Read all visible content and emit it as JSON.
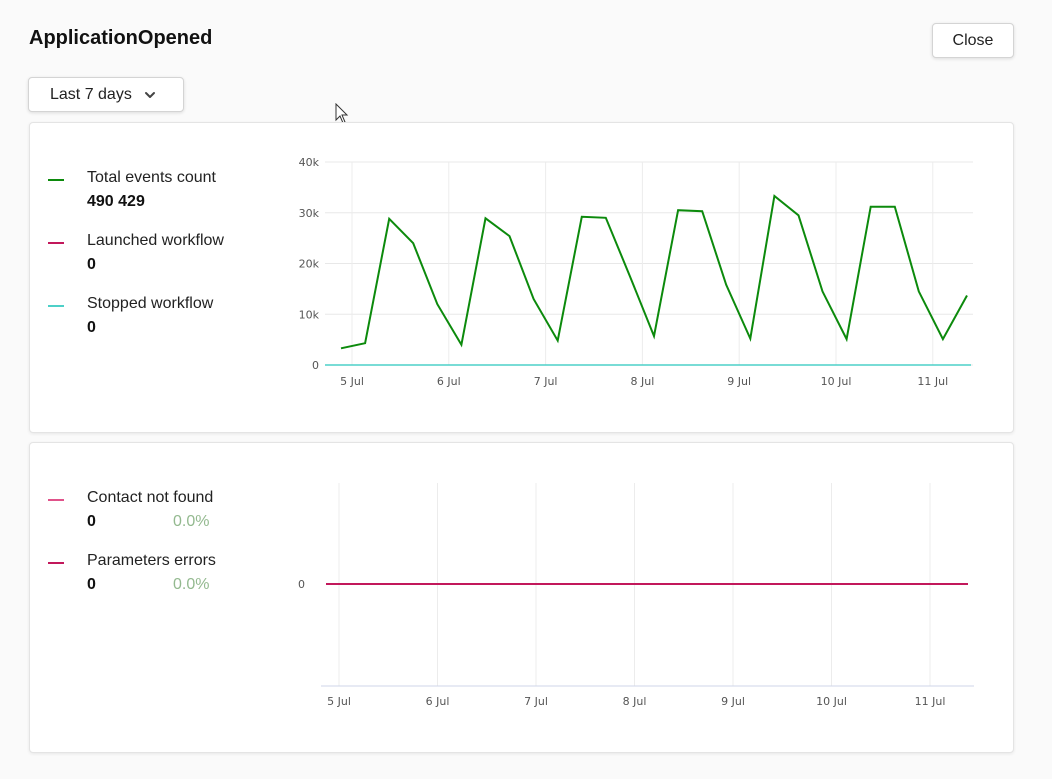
{
  "header": {
    "title": "ApplicationOpened",
    "close_label": "Close"
  },
  "filter": {
    "range_label": "Last 7 days",
    "chevron_icon": "chevron-down-icon"
  },
  "colors": {
    "total": "#0c8a0c",
    "launched": "#c2185b",
    "stopped": "#4dd0c8",
    "contact_not_found": "#e0528a",
    "parameters_errors": "#c2185b",
    "percent": "#93b98f"
  },
  "card1": {
    "legend": [
      {
        "label": "Total events count",
        "value": "490 429"
      },
      {
        "label": "Launched workflow",
        "value": "0"
      },
      {
        "label": "Stopped workflow",
        "value": "0"
      }
    ]
  },
  "card2": {
    "legend": [
      {
        "label": "Contact not found",
        "value": "0",
        "percent": "0.0%"
      },
      {
        "label": "Parameters errors",
        "value": "0",
        "percent": "0.0%"
      }
    ]
  },
  "chart_data": [
    {
      "type": "line",
      "x_ticks": [
        "5 Jul",
        "6 Jul",
        "7 Jul",
        "8 Jul",
        "9 Jul",
        "10 Jul",
        "11 Jul"
      ],
      "y_ticks": [
        "0",
        "10k",
        "20k",
        "30k",
        "40k"
      ],
      "ylim": [
        0,
        40000
      ],
      "grid": true,
      "series": [
        {
          "name": "Total events count",
          "values": [
            3300,
            4300,
            28800,
            24000,
            12000,
            4000,
            28900,
            25400,
            13000,
            4800,
            29200,
            29000,
            17500,
            5700,
            30500,
            30300,
            15800,
            5200,
            33300,
            29500,
            14500,
            5100,
            31200,
            31200,
            14500,
            5100,
            13700
          ]
        },
        {
          "name": "Launched workflow",
          "values": [
            0,
            0
          ]
        },
        {
          "name": "Stopped workflow",
          "values": [
            0,
            0
          ]
        }
      ]
    },
    {
      "type": "line",
      "x_ticks": [
        "5 Jul",
        "6 Jul",
        "7 Jul",
        "8 Jul",
        "9 Jul",
        "10 Jul",
        "11 Jul"
      ],
      "y_ticks": [
        "0"
      ],
      "grid": true,
      "series": [
        {
          "name": "Contact not found",
          "values": [
            0,
            0
          ]
        },
        {
          "name": "Parameters errors",
          "values": [
            0,
            0
          ]
        }
      ]
    }
  ]
}
